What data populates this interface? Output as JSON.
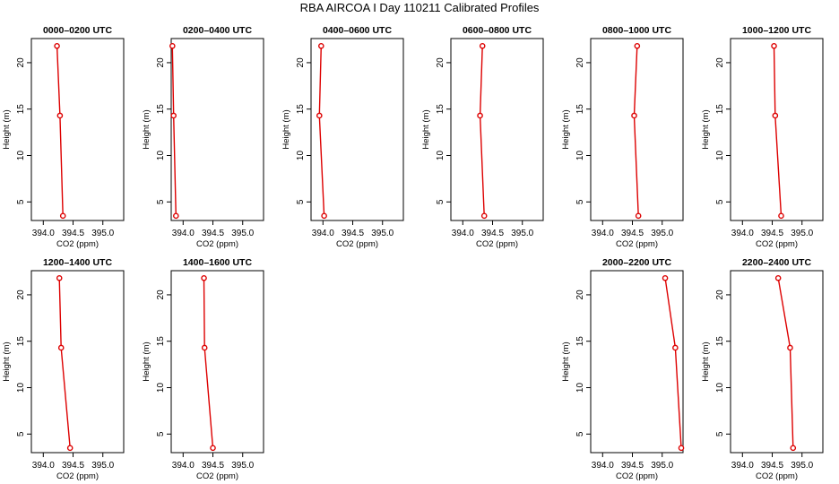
{
  "figure": {
    "title": "RBA AIRCOA I  Day 110211  Calibrated Profiles"
  },
  "colors": {
    "line": "#dd0000",
    "axis": "#000000",
    "background": "#ffffff"
  },
  "chart_data": [
    {
      "type": "line",
      "title": "0000–0200 UTC",
      "xlabel": "CO2 (ppm)",
      "ylabel": "Height (m)",
      "xlim": [
        393.8,
        395.35
      ],
      "ylim": [
        3.0,
        22.6
      ],
      "xticks": [
        "394.0",
        "394.5",
        "395.0"
      ],
      "yticks": [
        "5",
        "10",
        "15",
        "20"
      ],
      "series": [
        {
          "x": [
            394.23,
            394.28,
            394.33
          ],
          "y": [
            21.8,
            14.3,
            3.5
          ]
        }
      ]
    },
    {
      "type": "line",
      "title": "0200–0400 UTC",
      "xlabel": "CO2 (ppm)",
      "ylabel": "Height (m)",
      "xlim": [
        393.8,
        395.35
      ],
      "ylim": [
        3.0,
        22.6
      ],
      "xticks": [
        "394.0",
        "394.5",
        "395.0"
      ],
      "yticks": [
        "5",
        "10",
        "15",
        "20"
      ],
      "series": [
        {
          "x": [
            393.82,
            393.84,
            393.88
          ],
          "y": [
            21.8,
            14.3,
            3.5
          ]
        }
      ]
    },
    {
      "type": "line",
      "title": "0400–0600 UTC",
      "xlabel": "CO2 (ppm)",
      "ylabel": "Height (m)",
      "xlim": [
        393.8,
        395.35
      ],
      "ylim": [
        3.0,
        22.6
      ],
      "xticks": [
        "394.0",
        "394.5",
        "395.0"
      ],
      "yticks": [
        "5",
        "10",
        "15",
        "20"
      ],
      "series": [
        {
          "x": [
            393.97,
            393.94,
            394.02
          ],
          "y": [
            21.8,
            14.3,
            3.5
          ]
        }
      ]
    },
    {
      "type": "line",
      "title": "0600–0800 UTC",
      "xlabel": "CO2 (ppm)",
      "ylabel": "Height (m)",
      "xlim": [
        393.8,
        395.35
      ],
      "ylim": [
        3.0,
        22.6
      ],
      "xticks": [
        "394.0",
        "394.5",
        "395.0"
      ],
      "yticks": [
        "5",
        "10",
        "15",
        "20"
      ],
      "series": [
        {
          "x": [
            394.33,
            394.29,
            394.36
          ],
          "y": [
            21.8,
            14.3,
            3.5
          ]
        }
      ]
    },
    {
      "type": "line",
      "title": "0800–1000 UTC",
      "xlabel": "CO2 (ppm)",
      "ylabel": "Height (m)",
      "xlim": [
        393.8,
        395.35
      ],
      "ylim": [
        3.0,
        22.6
      ],
      "xticks": [
        "394.0",
        "394.5",
        "395.0"
      ],
      "yticks": [
        "5",
        "10",
        "15",
        "20"
      ],
      "series": [
        {
          "x": [
            394.58,
            394.53,
            394.6
          ],
          "y": [
            21.8,
            14.3,
            3.5
          ]
        }
      ]
    },
    {
      "type": "line",
      "title": "1000–1200 UTC",
      "xlabel": "CO2 (ppm)",
      "ylabel": "Height (m)",
      "xlim": [
        393.8,
        395.35
      ],
      "ylim": [
        3.0,
        22.6
      ],
      "xticks": [
        "394.0",
        "394.5",
        "395.0"
      ],
      "yticks": [
        "5",
        "10",
        "15",
        "20"
      ],
      "series": [
        {
          "x": [
            394.53,
            394.55,
            394.65
          ],
          "y": [
            21.8,
            14.3,
            3.5
          ]
        }
      ]
    },
    {
      "type": "line",
      "title": "1200–1400 UTC",
      "xlabel": "CO2 (ppm)",
      "ylabel": "Height (m)",
      "xlim": [
        393.8,
        395.35
      ],
      "ylim": [
        3.0,
        22.6
      ],
      "xticks": [
        "394.0",
        "394.5",
        "395.0"
      ],
      "yticks": [
        "5",
        "10",
        "15",
        "20"
      ],
      "series": [
        {
          "x": [
            394.27,
            394.3,
            394.45
          ],
          "y": [
            21.8,
            14.3,
            3.5
          ]
        }
      ]
    },
    {
      "type": "line",
      "title": "1400–1600 UTC",
      "xlabel": "CO2 (ppm)",
      "ylabel": "Height (m)",
      "xlim": [
        393.8,
        395.35
      ],
      "ylim": [
        3.0,
        22.6
      ],
      "xticks": [
        "394.0",
        "394.5",
        "395.0"
      ],
      "yticks": [
        "5",
        "10",
        "15",
        "20"
      ],
      "series": [
        {
          "x": [
            394.35,
            394.36,
            394.5
          ],
          "y": [
            21.8,
            14.3,
            3.5
          ]
        }
      ]
    },
    {
      "type": "line",
      "title": "2000–2200 UTC",
      "xlabel": "CO2 (ppm)",
      "ylabel": "Height (m)",
      "xlim": [
        393.8,
        395.35
      ],
      "ylim": [
        3.0,
        22.6
      ],
      "xticks": [
        "394.0",
        "394.5",
        "395.0"
      ],
      "yticks": [
        "5",
        "10",
        "15",
        "20"
      ],
      "series": [
        {
          "x": [
            395.05,
            395.22,
            395.32
          ],
          "y": [
            21.8,
            14.3,
            3.5
          ]
        }
      ]
    },
    {
      "type": "line",
      "title": "2200–2400 UTC",
      "xlabel": "CO2 (ppm)",
      "ylabel": "Height (m)",
      "xlim": [
        393.8,
        395.35
      ],
      "ylim": [
        3.0,
        22.6
      ],
      "xticks": [
        "394.0",
        "394.5",
        "395.0"
      ],
      "yticks": [
        "5",
        "10",
        "15",
        "20"
      ],
      "series": [
        {
          "x": [
            394.6,
            394.8,
            394.85
          ],
          "y": [
            21.8,
            14.3,
            3.5
          ]
        }
      ]
    }
  ]
}
